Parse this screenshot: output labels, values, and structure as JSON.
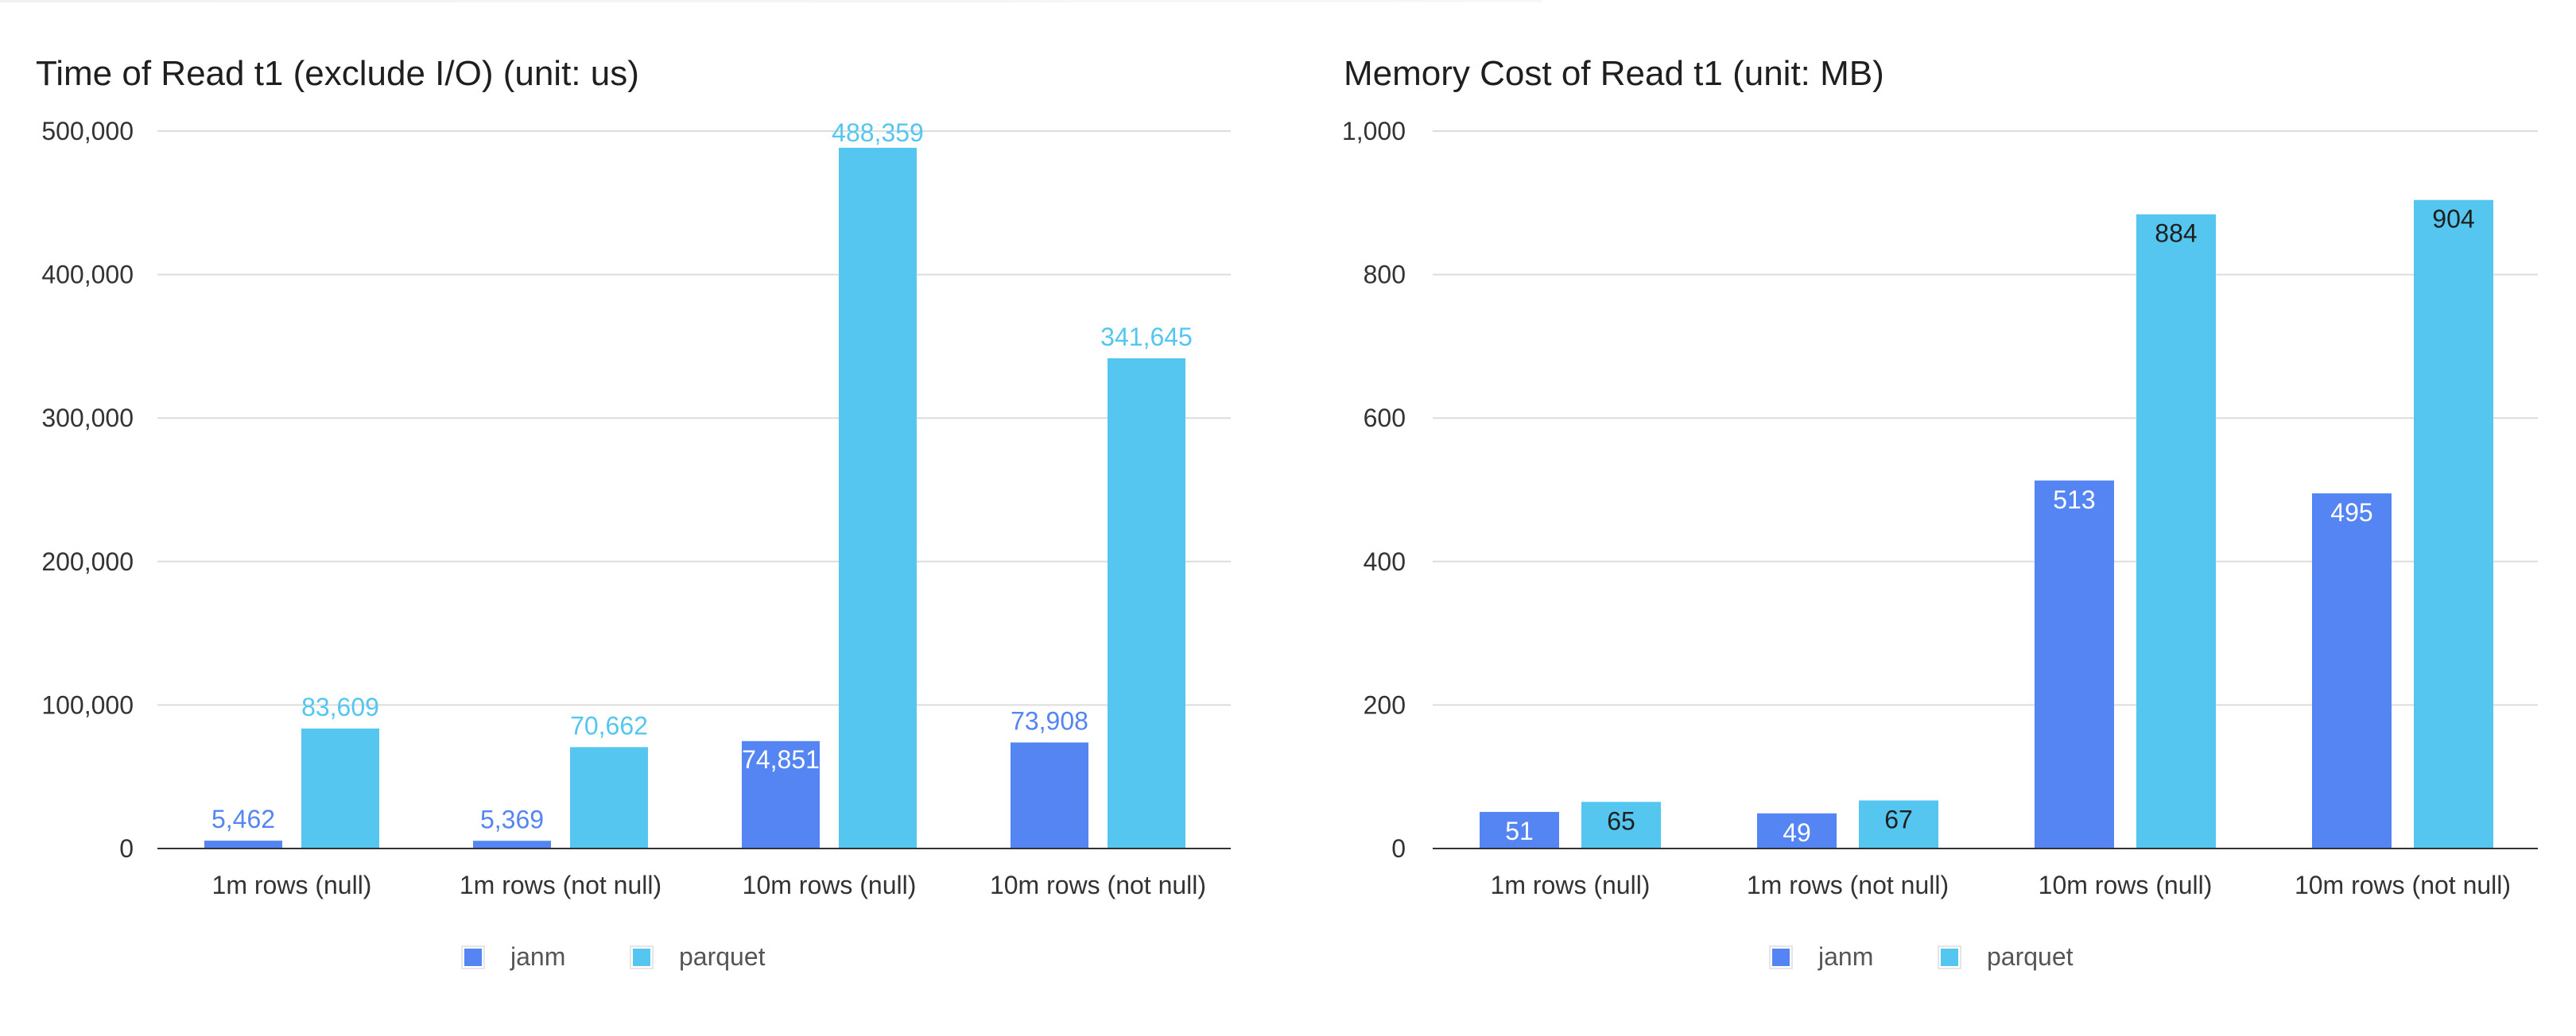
{
  "chart_data": [
    {
      "type": "bar",
      "title": "Time of Read t1 (exclude I/O) (unit: us)",
      "categories": [
        "1m rows (null)",
        "1m rows (not null)",
        "10m rows (null)",
        "10m rows (not null)"
      ],
      "series": [
        {
          "name": "janm",
          "values": [
            5462,
            5369,
            74851,
            73908
          ],
          "labels": [
            "5,462",
            "5,369",
            "74,851",
            "73,908"
          ],
          "color": "#5585f2"
        },
        {
          "name": "parquet",
          "values": [
            83609,
            70662,
            488359,
            341645
          ],
          "labels": [
            "83,609",
            "70,662",
            "488,359",
            "341,645"
          ],
          "color": "#54c6f0"
        }
      ],
      "ylim": [
        0,
        500000
      ],
      "yticks": [
        0,
        100000,
        200000,
        300000,
        400000,
        500000
      ],
      "ytick_labels": [
        "0",
        "100,000",
        "200,000",
        "300,000",
        "400,000",
        "500,000"
      ],
      "label_position": "above",
      "grid": true,
      "legend": "bottom-center"
    },
    {
      "type": "bar",
      "title": "Memory Cost of Read t1 (unit: MB)",
      "categories": [
        "1m rows (null)",
        "1m rows (not null)",
        "10m rows (null)",
        "10m rows (not null)"
      ],
      "series": [
        {
          "name": "janm",
          "values": [
            51,
            49,
            513,
            495
          ],
          "labels": [
            "51",
            "49",
            "513",
            "495"
          ],
          "color": "#5585f2"
        },
        {
          "name": "parquet",
          "values": [
            65,
            67,
            884,
            904
          ],
          "labels": [
            "65",
            "67",
            "884",
            "904"
          ],
          "color": "#54c6f0"
        }
      ],
      "ylim": [
        0,
        1000
      ],
      "yticks": [
        0,
        200,
        400,
        600,
        800,
        1000
      ],
      "ytick_labels": [
        "0",
        "200",
        "400",
        "600",
        "800",
        "1,000"
      ],
      "label_position": "inside-top",
      "grid": true,
      "legend": "bottom-center"
    }
  ]
}
